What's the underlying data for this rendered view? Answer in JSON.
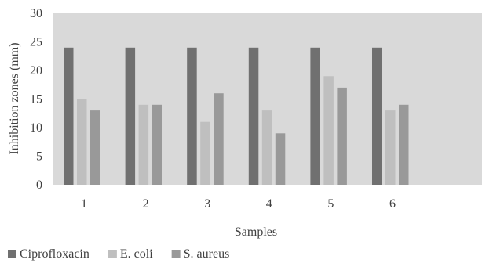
{
  "chart_data": {
    "type": "bar",
    "categories": [
      "1",
      "2",
      "3",
      "4",
      "5",
      "6"
    ],
    "series": [
      {
        "name": "Ciprofloxacin",
        "values": [
          24,
          24,
          24,
          24,
          24,
          24
        ],
        "color": "#707070"
      },
      {
        "name": "E. coli",
        "values": [
          15,
          14,
          11,
          13,
          19,
          13
        ],
        "color": "#bfbfbf"
      },
      {
        "name": "S. aureus",
        "values": [
          13,
          14,
          16,
          9,
          17,
          14
        ],
        "color": "#999999"
      }
    ],
    "xlabel": "Samples",
    "ylabel": "Inhibition zones (mm)",
    "ylim": [
      0,
      30
    ],
    "yticks": [
      "0",
      "5",
      "10",
      "15",
      "20",
      "25",
      "30"
    ],
    "plot_background": "#d9d9d9",
    "grid": false,
    "legend_position": "bottom-left"
  }
}
